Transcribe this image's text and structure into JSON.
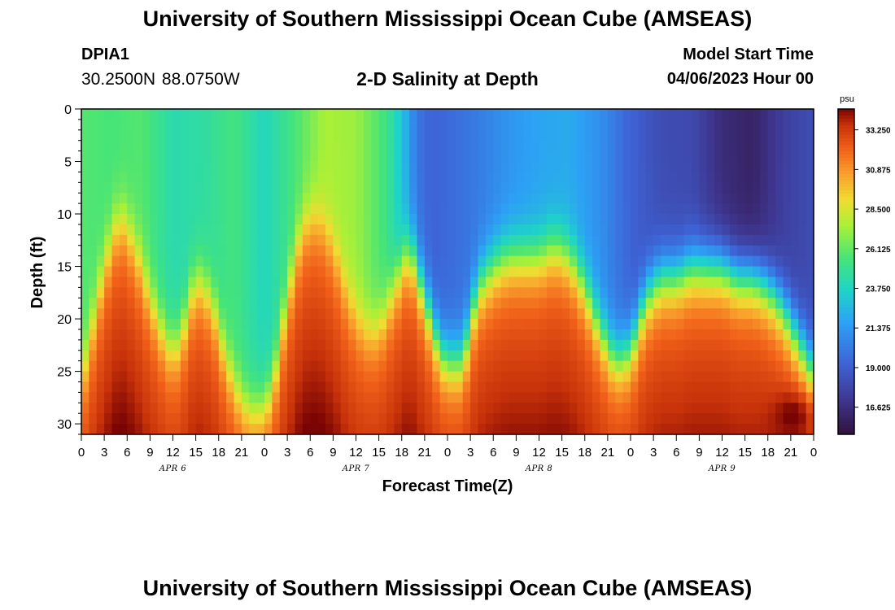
{
  "header": {
    "title": "University of Southern Mississippi Ocean Cube (AMSEAS)",
    "station_id": "DPIA1",
    "coordinates": "30.2500N  88.0750W",
    "subtitle": "2-D Salinity at Depth",
    "start_label": "Model Start Time",
    "start_value": "04/06/2023 Hour 00"
  },
  "footer": {
    "title": "University of Southern Mississippi Ocean Cube (AMSEAS)"
  },
  "chart_data": {
    "type": "heatmap",
    "title": "2-D Salinity at Depth",
    "xlabel": "Forecast Time(Z)",
    "ylabel": "Depth (ft)",
    "x_range_hours": [
      0,
      96
    ],
    "ylim": [
      0,
      31
    ],
    "y_inverted": true,
    "xticks": [
      "0",
      "3",
      "6",
      "9",
      "12",
      "15",
      "18",
      "21",
      "0",
      "3",
      "6",
      "9",
      "12",
      "15",
      "18",
      "21",
      "0",
      "3",
      "6",
      "9",
      "12",
      "15",
      "18",
      "21",
      "0",
      "3",
      "6",
      "9",
      "12",
      "15",
      "18",
      "21",
      "0"
    ],
    "yticks": [
      0,
      5,
      10,
      15,
      20,
      25,
      30
    ],
    "date_labels": [
      {
        "label": "APR 6",
        "hour": 12
      },
      {
        "label": "APR 7",
        "hour": 36
      },
      {
        "label": "APR 8",
        "hour": 60
      },
      {
        "label": "APR 9",
        "hour": 84
      }
    ],
    "colorbar": {
      "unit": "psu",
      "min": 15.0,
      "max": 34.5,
      "ticks": [
        "33.250",
        "30.875",
        "28.500",
        "26.125",
        "23.750",
        "21.375",
        "19.000",
        "16.625"
      ]
    },
    "halocline_depth_ft": {
      "hours": [
        0,
        3,
        5,
        7,
        9,
        11,
        12,
        13,
        15,
        17,
        19,
        21,
        23,
        25,
        27,
        29,
        31,
        33,
        35,
        37,
        39,
        41,
        43,
        45,
        47,
        48,
        50,
        52,
        54,
        56,
        58,
        60,
        62,
        64,
        66,
        68,
        70,
        72,
        74,
        76,
        78,
        80,
        82,
        84,
        86,
        88,
        90,
        92,
        94,
        96
      ],
      "values": [
        26,
        15,
        10,
        13,
        18,
        22,
        23,
        22,
        16,
        18,
        24,
        28,
        29,
        27,
        18,
        11,
        10,
        13,
        18,
        21,
        21,
        17,
        13,
        18,
        23,
        24,
        24,
        17,
        15,
        14,
        14,
        14,
        13,
        14,
        17,
        21,
        24,
        23,
        18,
        16,
        16,
        15,
        15,
        15,
        16,
        16,
        17,
        19,
        22,
        25
      ]
    },
    "surface_salinity_psu": {
      "hours": [
        0,
        4,
        8,
        12,
        16,
        20,
        24,
        28,
        32,
        36,
        40,
        42,
        44,
        46,
        48,
        52,
        56,
        60,
        64,
        68,
        72,
        76,
        80,
        84,
        88,
        92,
        96
      ],
      "values": [
        25.8,
        25.5,
        25.8,
        24.2,
        24.5,
        25.4,
        23.8,
        25.5,
        27.5,
        27.2,
        25.2,
        23.0,
        20.0,
        19.2,
        19.5,
        20.2,
        21.2,
        21.8,
        22.0,
        21.0,
        19.2,
        18.2,
        18.0,
        16.5,
        16.0,
        17.5,
        18.2
      ]
    },
    "deep_salinity_psu": 31.6,
    "deep_max_salinity_psu": 33.6,
    "deep_max_at": {
      "hour": 94,
      "depth_ft": 29
    }
  }
}
